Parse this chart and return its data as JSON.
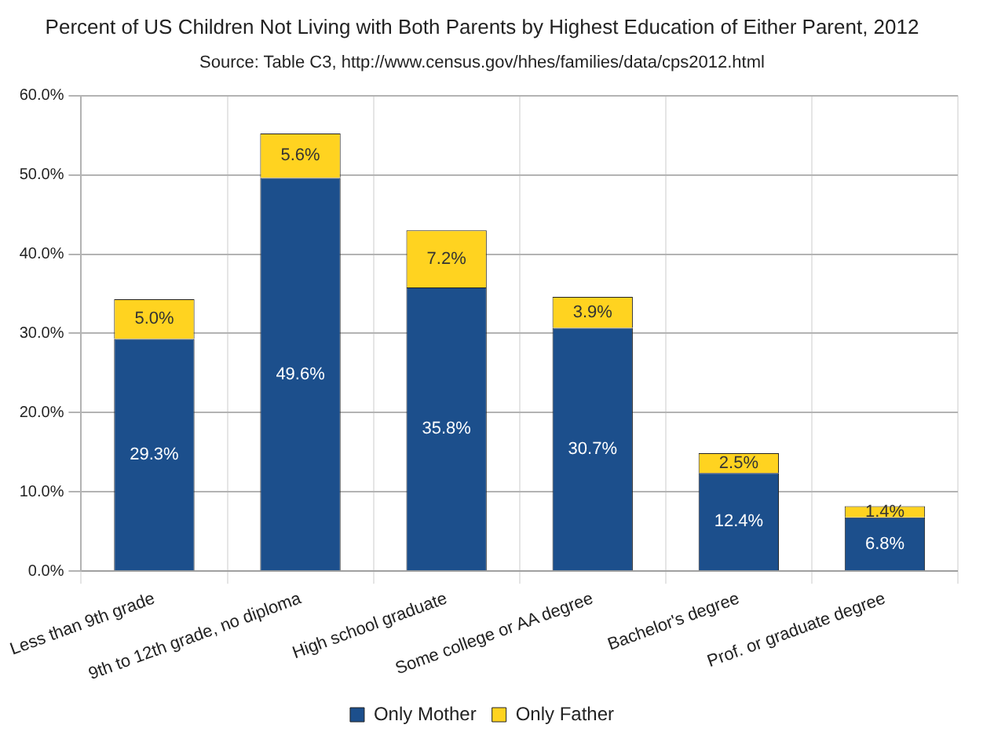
{
  "chart_data": {
    "type": "bar",
    "title": "Percent of US Children Not Living with Both Parents by Highest Education of Either Parent, 2012",
    "subtitle": "Source: Table C3, http://www.census.gov/hhes/families/data/cps2012.html",
    "categories": [
      "Less than 9th grade",
      "9th to 12th grade, no diploma",
      "High school graduate",
      "Some college or AA degree",
      "Bachelor's degree",
      "Prof. or graduate degree"
    ],
    "stacked": true,
    "series": [
      {
        "name": "Only Mother",
        "color": "#1c4f8c",
        "values": [
          29.3,
          49.6,
          35.8,
          30.7,
          12.4,
          6.8
        ],
        "value_labels": [
          "29.3%",
          "49.6%",
          "35.8%",
          "30.7%",
          "12.4%",
          "6.8%"
        ]
      },
      {
        "name": "Only Father",
        "color": "#ffd320",
        "values": [
          5.0,
          5.6,
          7.2,
          3.9,
          2.5,
          1.4
        ],
        "value_labels": [
          "5.0%",
          "5.6%",
          "7.2%",
          "3.9%",
          "2.5%",
          "1.4%"
        ]
      }
    ],
    "ylim": [
      0,
      60
    ],
    "yticks": [
      {
        "value": 0,
        "label": "0.0%"
      },
      {
        "value": 10,
        "label": "10.0%"
      },
      {
        "value": 20,
        "label": "20.0%"
      },
      {
        "value": 30,
        "label": "30.0%"
      },
      {
        "value": 40,
        "label": "40.0%"
      },
      {
        "value": 50,
        "label": "50.0%"
      },
      {
        "value": 60,
        "label": "60.0%"
      }
    ],
    "grid": true,
    "legend": "bottom"
  }
}
